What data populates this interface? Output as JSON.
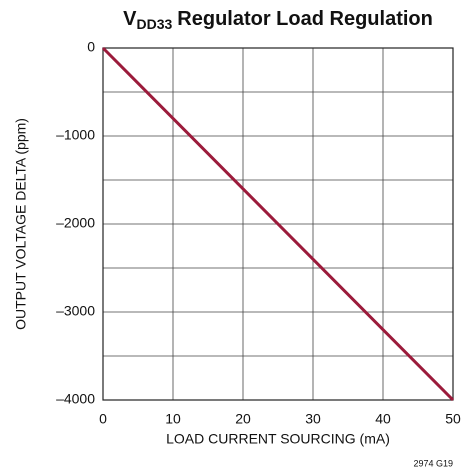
{
  "chart_data": {
    "type": "line",
    "title": {
      "main": "V",
      "subscript": "DD33",
      "rest": "Regulator Load Regulation"
    },
    "xlabel": "LOAD CURRENT SOURCING (mA)",
    "ylabel": "OUTPUT VOLTAGE DELTA (ppm)",
    "footnote": "2974 G19",
    "x": [
      0,
      50
    ],
    "series": [
      {
        "name": "Load Regulation",
        "color": "#9b1b3b",
        "values": [
          0,
          -4000
        ]
      }
    ],
    "xlim": [
      0,
      50
    ],
    "xticks": [
      0,
      10,
      20,
      30,
      40,
      50
    ],
    "ylim": [
      -4000,
      0
    ],
    "yticks": [
      0,
      {
        "value": -1000,
        "label": "–1000"
      },
      {
        "value": -2000,
        "label": "–2000"
      },
      {
        "value": -3000,
        "label": "–3000"
      },
      {
        "value": -4000,
        "label": "–4000"
      }
    ],
    "yminor": [
      -500,
      -1500,
      -2500,
      -3500
    ],
    "grid": true
  }
}
